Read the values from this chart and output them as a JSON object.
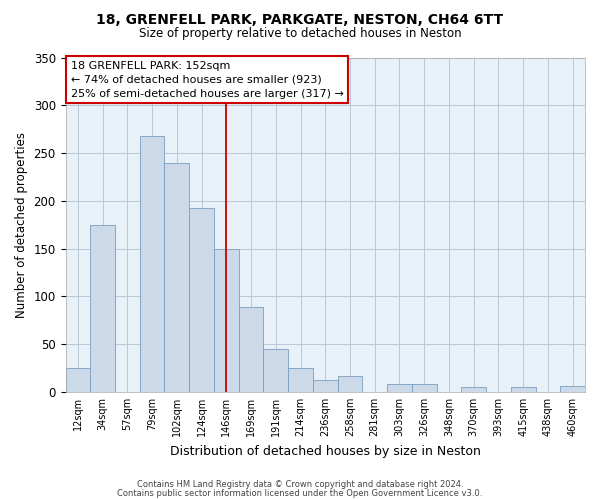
{
  "title": "18, GRENFELL PARK, PARKGATE, NESTON, CH64 6TT",
  "subtitle": "Size of property relative to detached houses in Neston",
  "xlabel": "Distribution of detached houses by size in Neston",
  "ylabel": "Number of detached properties",
  "bar_color": "#ccd9e8",
  "bar_edge_color": "#7a9ec0",
  "background_color": "#e8f0f8",
  "grid_color": "#b8c8d8",
  "bin_labels": [
    "12sqm",
    "34sqm",
    "57sqm",
    "79sqm",
    "102sqm",
    "124sqm",
    "146sqm",
    "169sqm",
    "191sqm",
    "214sqm",
    "236sqm",
    "258sqm",
    "281sqm",
    "303sqm",
    "326sqm",
    "348sqm",
    "370sqm",
    "393sqm",
    "415sqm",
    "438sqm",
    "460sqm"
  ],
  "bar_heights": [
    25,
    175,
    0,
    268,
    240,
    192,
    150,
    89,
    45,
    25,
    13,
    17,
    0,
    8,
    8,
    0,
    5,
    0,
    5,
    0,
    6
  ],
  "ylim": [
    0,
    350
  ],
  "yticks": [
    0,
    50,
    100,
    150,
    200,
    250,
    300,
    350
  ],
  "property_line_idx": 6.5,
  "annotation_title": "18 GRENFELL PARK: 152sqm",
  "annotation_line1": "← 74% of detached houses are smaller (923)",
  "annotation_line2": "25% of semi-detached houses are larger (317) →",
  "footer_line1": "Contains HM Land Registry data © Crown copyright and database right 2024.",
  "footer_line2": "Contains public sector information licensed under the Open Government Licence v3.0."
}
